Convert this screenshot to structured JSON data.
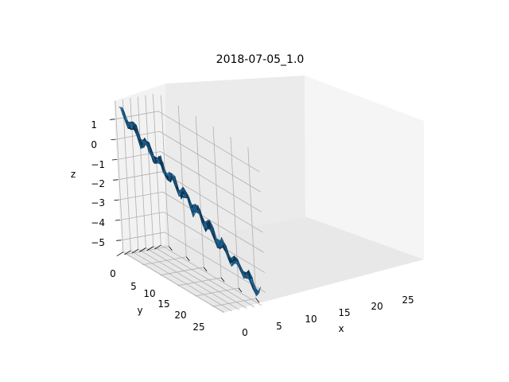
{
  "chart_data": {
    "type": "surface3d",
    "title": "2018-07-05_1.0",
    "xlabel": "x",
    "ylabel": "y",
    "zlabel": "z",
    "xlim": [
      -1,
      28
    ],
    "ylim": [
      -1,
      28
    ],
    "zlim": [
      -5.6,
      1.9
    ],
    "x_ticks": [
      0,
      5,
      10,
      15,
      20,
      25
    ],
    "y_ticks": [
      0,
      5,
      10,
      15,
      20,
      25
    ],
    "z_ticks": [
      1,
      0,
      -1,
      -2,
      -3,
      -4,
      -5
    ],
    "x_tick_labels": [
      "0",
      "5",
      "10",
      "15",
      "20",
      "25"
    ],
    "y_tick_labels": [
      "0",
      "5",
      "10",
      "15",
      "20",
      "25"
    ],
    "z_tick_labels": [
      "1",
      "0",
      "−1",
      "−2",
      "−3",
      "−4",
      "−5"
    ],
    "surface_color": "#1f5f8b",
    "surface_edge_color": "#0d3553",
    "surface_light_color": "#3a8cc4",
    "surface_z_at_origin": 1.5,
    "surface_z_at_far_corner": -5.2,
    "grid": true
  }
}
